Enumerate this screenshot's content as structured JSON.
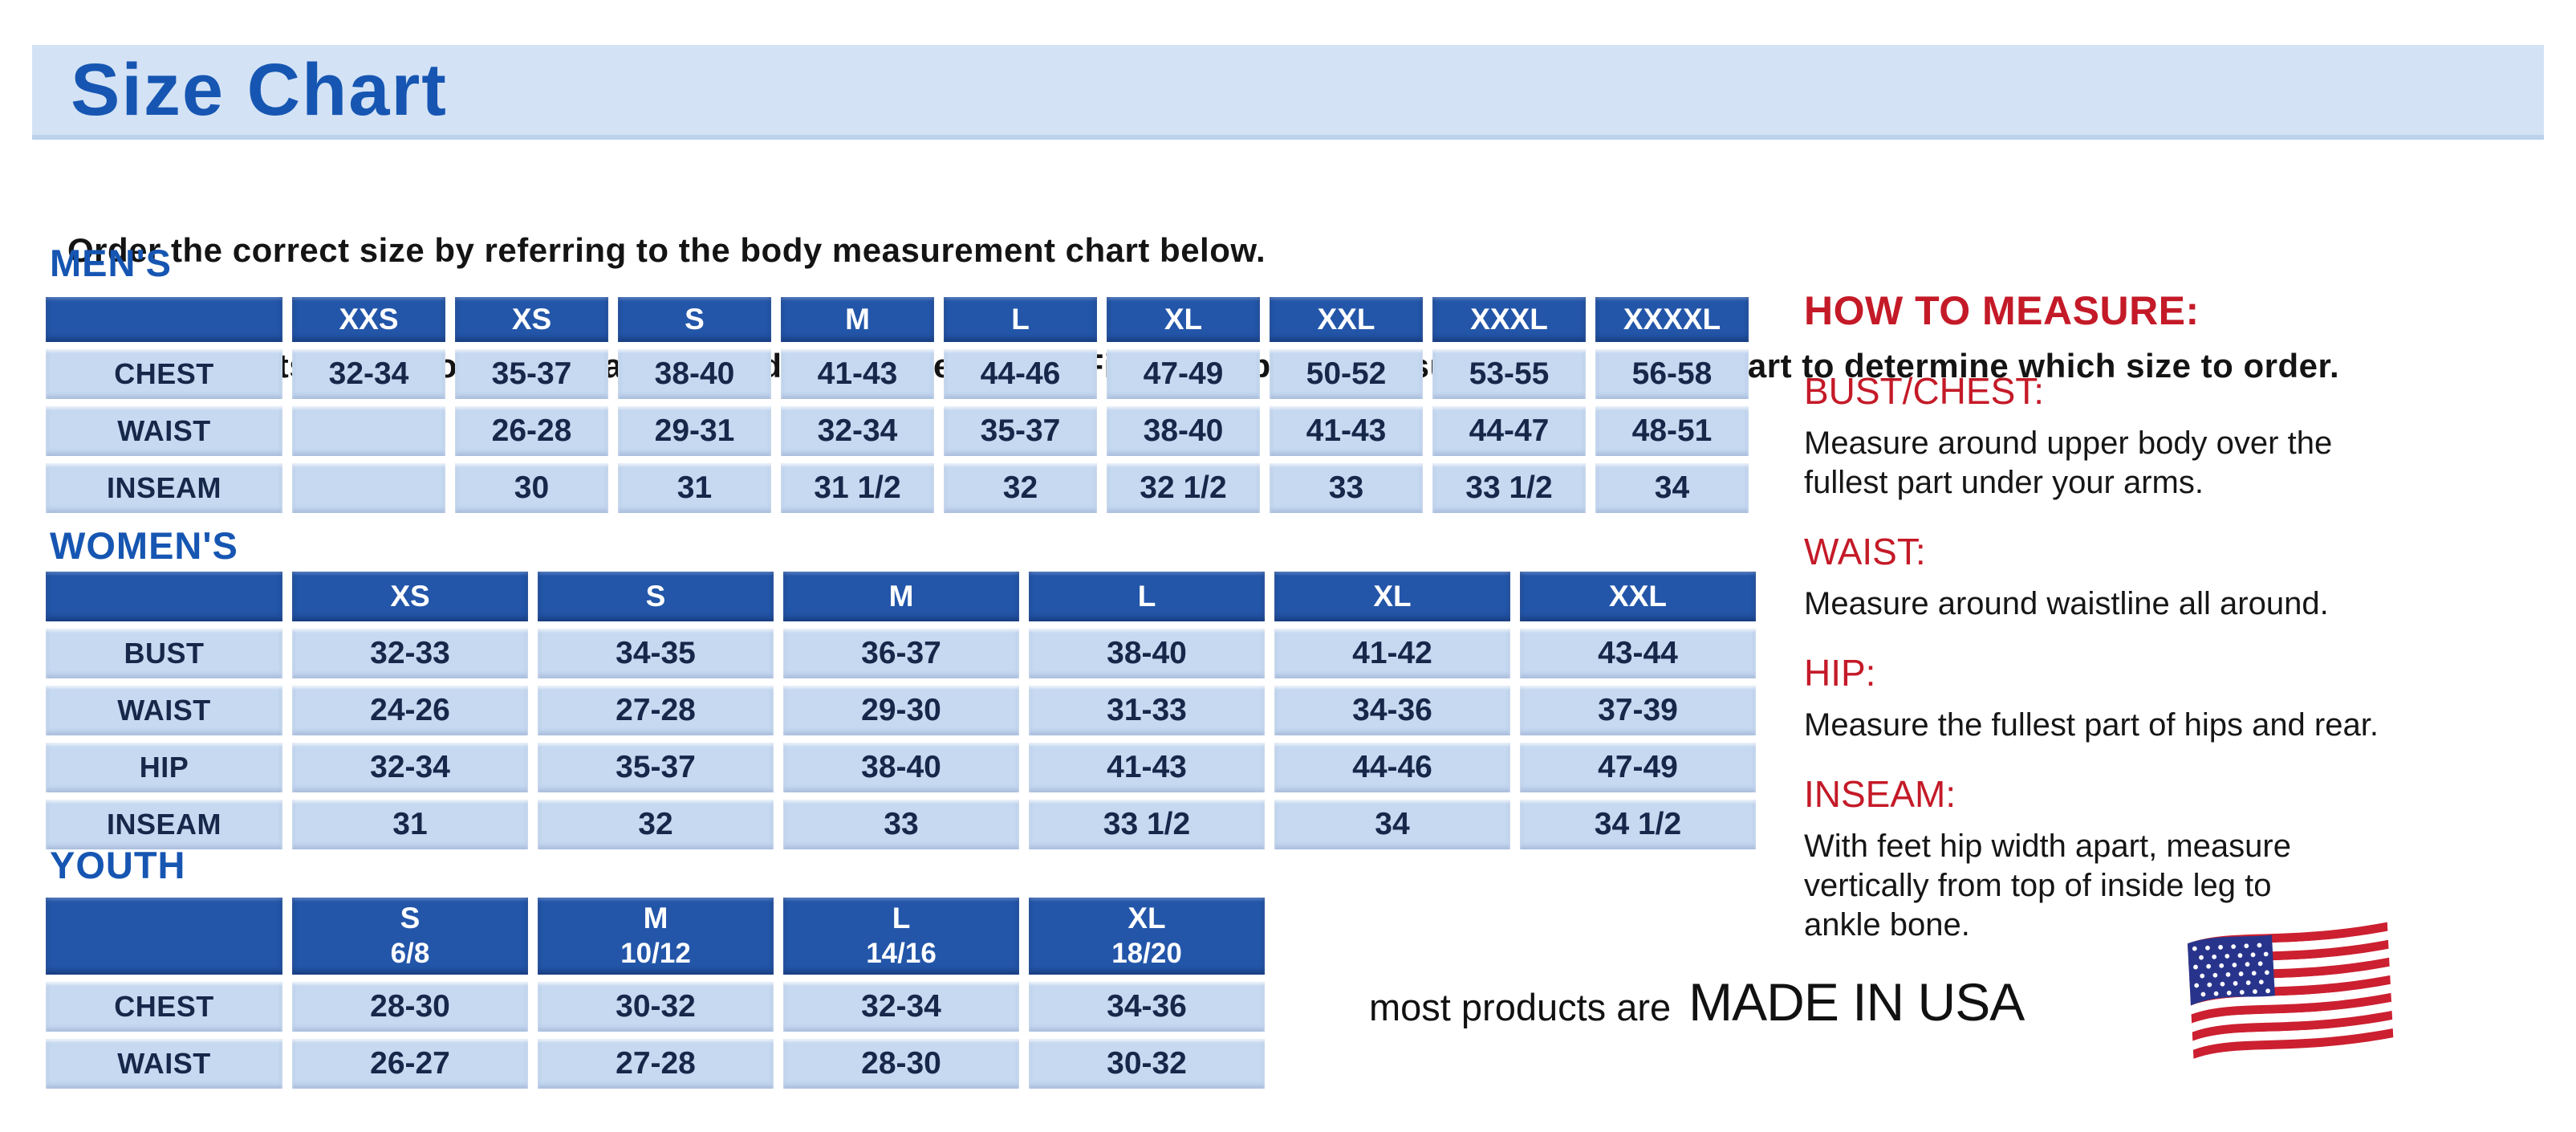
{
  "page": {
    "title": "Size Chart",
    "intro_line1": "Order the correct size by referring to the body measurement chart below.",
    "intro_line2": "Measurements shown on size chart are body measurements.  Find your body measurements on the chart to determine which size to order."
  },
  "colors": {
    "banner_bg": "#d3e2f5",
    "heading_blue": "#1656b2",
    "table_header_blue": "#2356a9",
    "table_cell_blue": "#c6d9f1",
    "cell_text_navy": "#16284a",
    "accent_red": "#c41a28",
    "flag_red": "#cc2030",
    "flag_navy": "#28348c"
  },
  "tables": {
    "mens": {
      "heading": "MEN'S",
      "columns": [
        {
          "label": "XXS"
        },
        {
          "label": "XS"
        },
        {
          "label": "S"
        },
        {
          "label": "M"
        },
        {
          "label": "L"
        },
        {
          "label": "XL"
        },
        {
          "label": "XXL"
        },
        {
          "label": "XXXL"
        },
        {
          "label": "XXXXL"
        }
      ],
      "rows": [
        {
          "label": "CHEST",
          "values": [
            "32-34",
            "35-37",
            "38-40",
            "41-43",
            "44-46",
            "47-49",
            "50-52",
            "53-55",
            "56-58"
          ]
        },
        {
          "label": "WAIST",
          "values": [
            "",
            "26-28",
            "29-31",
            "32-34",
            "35-37",
            "38-40",
            "41-43",
            "44-47",
            "48-51"
          ]
        },
        {
          "label": "INSEAM",
          "values": [
            "",
            "30",
            "31",
            "31 1/2",
            "32",
            "32 1/2",
            "33",
            "33 1/2",
            "34"
          ]
        }
      ]
    },
    "womens": {
      "heading": "WOMEN'S",
      "columns": [
        {
          "label": "XS"
        },
        {
          "label": "S"
        },
        {
          "label": "M"
        },
        {
          "label": "L"
        },
        {
          "label": "XL"
        },
        {
          "label": "XXL"
        }
      ],
      "rows": [
        {
          "label": "BUST",
          "values": [
            "32-33",
            "34-35",
            "36-37",
            "38-40",
            "41-42",
            "43-44"
          ]
        },
        {
          "label": "WAIST",
          "values": [
            "24-26",
            "27-28",
            "29-30",
            "31-33",
            "34-36",
            "37-39"
          ]
        },
        {
          "label": "HIP",
          "values": [
            "32-34",
            "35-37",
            "38-40",
            "41-43",
            "44-46",
            "47-49"
          ]
        },
        {
          "label": "INSEAM",
          "values": [
            "31",
            "32",
            "33",
            "33 1/2",
            "34",
            "34 1/2"
          ]
        }
      ]
    },
    "youth": {
      "heading": "YOUTH",
      "columns": [
        {
          "label": "S",
          "sub": "6/8"
        },
        {
          "label": "M",
          "sub": "10/12"
        },
        {
          "label": "L",
          "sub": "14/16"
        },
        {
          "label": "XL",
          "sub": "18/20"
        }
      ],
      "rows": [
        {
          "label": "CHEST",
          "values": [
            "28-30",
            "30-32",
            "32-34",
            "34-36"
          ]
        },
        {
          "label": "WAIST",
          "values": [
            "26-27",
            "27-28",
            "28-30",
            "30-32"
          ]
        }
      ]
    }
  },
  "how_to_measure": {
    "title": "HOW TO MEASURE:",
    "items": [
      {
        "label": "BUST/CHEST:",
        "lines": [
          "Measure around upper body over the",
          "fullest part under your arms."
        ]
      },
      {
        "label": "WAIST:",
        "lines": [
          "Measure around waistline all around."
        ]
      },
      {
        "label": "HIP:",
        "lines": [
          "Measure the fullest part of hips and rear."
        ]
      },
      {
        "label": "INSEAM:",
        "lines": [
          "With feet hip width apart, measure",
          "vertically from top of inside leg to",
          "ankle bone."
        ]
      }
    ]
  },
  "footer": {
    "prefix": "most products are",
    "made_in": "MADE IN USA",
    "flag_icon": "us-flag-icon"
  }
}
